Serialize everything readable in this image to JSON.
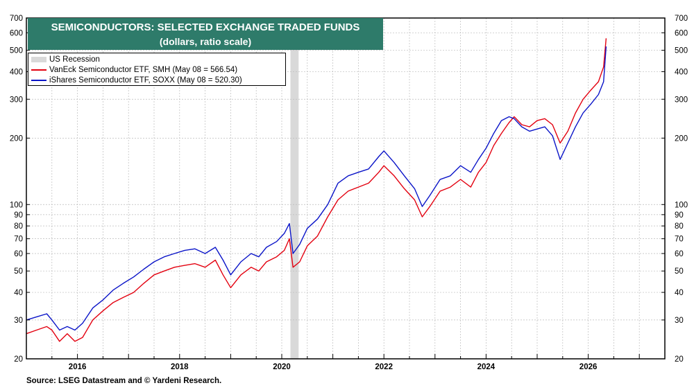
{
  "title": "SEMICONDUCTORS: SELECTED EXCHANGE TRADED FUNDS",
  "subtitle": "(dollars, ratio scale)",
  "source": "Source: LSEG Datastream and © Yardeni Research.",
  "colors": {
    "smh": "#e3000f",
    "soxx": "#0a14c8",
    "recession": "#d9d9d9",
    "title_bg": "#2e7b6a",
    "grid": "#bbbbbb"
  },
  "legend": {
    "recession": "US Recession",
    "smh": "VanEck Semiconductor ETF, SMH (May 08 = 566.54)",
    "soxx": "iShares Semiconductor ETF, SOXX (May 08 = 520.30)"
  },
  "chart_data": {
    "type": "line",
    "title": "SEMICONDUCTORS: SELECTED EXCHANGE TRADED FUNDS",
    "subtitle": "(dollars, ratio scale)",
    "y_scale": "log",
    "ylim": [
      20,
      700
    ],
    "xlim": [
      2015.0,
      2027.5
    ],
    "y_ticks": [
      20,
      30,
      40,
      50,
      60,
      70,
      80,
      90,
      100,
      200,
      300,
      400,
      500,
      600,
      700
    ],
    "x_ticks": [
      2016,
      2018,
      2020,
      2022,
      2024,
      2026
    ],
    "grid": true,
    "recessions": [
      [
        2020.17,
        2020.33
      ]
    ],
    "series": [
      {
        "name": "VanEck Semiconductor ETF, SMH (May 08 = 566.54)",
        "color": "#e3000f",
        "x": [
          2015.0,
          2015.2,
          2015.4,
          2015.5,
          2015.65,
          2015.8,
          2015.95,
          2016.1,
          2016.3,
          2016.5,
          2016.7,
          2016.9,
          2017.1,
          2017.3,
          2017.5,
          2017.7,
          2017.9,
          2018.1,
          2018.3,
          2018.5,
          2018.7,
          2018.85,
          2019.0,
          2019.2,
          2019.4,
          2019.55,
          2019.7,
          2019.9,
          2020.05,
          2020.15,
          2020.22,
          2020.35,
          2020.5,
          2020.7,
          2020.9,
          2021.1,
          2021.3,
          2021.5,
          2021.7,
          2021.9,
          2022.0,
          2022.2,
          2022.4,
          2022.6,
          2022.75,
          2022.9,
          2023.1,
          2023.3,
          2023.5,
          2023.7,
          2023.85,
          2024.0,
          2024.15,
          2024.3,
          2024.45,
          2024.55,
          2024.7,
          2024.85,
          2025.0,
          2025.15,
          2025.3,
          2025.45,
          2025.6,
          2025.75,
          2025.9,
          2026.05,
          2026.2,
          2026.3,
          2026.35
        ],
        "y": [
          26,
          27,
          28,
          27,
          24,
          26,
          24,
          25,
          30,
          33,
          36,
          38,
          40,
          44,
          48,
          50,
          52,
          53,
          54,
          52,
          56,
          48,
          42,
          48,
          52,
          50,
          55,
          58,
          62,
          70,
          52,
          55,
          65,
          72,
          88,
          105,
          115,
          120,
          125,
          140,
          150,
          135,
          118,
          105,
          88,
          98,
          115,
          120,
          130,
          120,
          140,
          155,
          185,
          210,
          235,
          250,
          230,
          225,
          240,
          245,
          230,
          190,
          215,
          260,
          300,
          330,
          360,
          420,
          566.54
        ]
      },
      {
        "name": "iShares Semiconductor ETF, SOXX (May 08 = 520.30)",
        "color": "#0a14c8",
        "x": [
          2015.0,
          2015.2,
          2015.4,
          2015.5,
          2015.65,
          2015.8,
          2015.95,
          2016.1,
          2016.3,
          2016.5,
          2016.7,
          2016.9,
          2017.1,
          2017.3,
          2017.5,
          2017.7,
          2017.9,
          2018.1,
          2018.3,
          2018.5,
          2018.7,
          2018.85,
          2019.0,
          2019.2,
          2019.4,
          2019.55,
          2019.7,
          2019.9,
          2020.05,
          2020.15,
          2020.22,
          2020.35,
          2020.5,
          2020.7,
          2020.9,
          2021.1,
          2021.3,
          2021.5,
          2021.7,
          2021.9,
          2022.0,
          2022.2,
          2022.4,
          2022.6,
          2022.75,
          2022.9,
          2023.1,
          2023.3,
          2023.5,
          2023.7,
          2023.85,
          2024.0,
          2024.15,
          2024.3,
          2024.45,
          2024.55,
          2024.7,
          2024.85,
          2025.0,
          2025.15,
          2025.3,
          2025.45,
          2025.6,
          2025.75,
          2025.9,
          2026.05,
          2026.2,
          2026.3,
          2026.35
        ],
        "y": [
          30,
          31,
          32,
          30,
          27,
          28,
          27,
          29,
          34,
          37,
          41,
          44,
          47,
          51,
          55,
          58,
          60,
          62,
          63,
          60,
          64,
          56,
          48,
          55,
          60,
          58,
          64,
          68,
          74,
          82,
          60,
          66,
          78,
          86,
          100,
          125,
          135,
          140,
          145,
          165,
          175,
          155,
          135,
          118,
          98,
          110,
          130,
          135,
          150,
          140,
          160,
          180,
          210,
          240,
          250,
          245,
          225,
          215,
          220,
          225,
          205,
          160,
          190,
          225,
          260,
          285,
          315,
          360,
          520.3
        ]
      }
    ]
  }
}
